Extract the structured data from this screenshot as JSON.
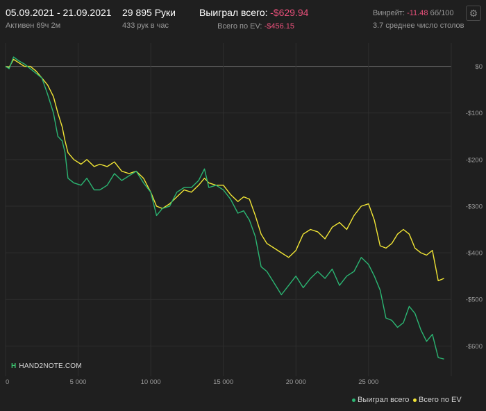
{
  "header": {
    "date_range": "05.09.2021 - 21.09.2021",
    "active_time": "Активен 69ч 2м",
    "hands": "29 895 Руки",
    "hands_per_hour": "433 рук в час",
    "won_label": "Выиграл всего:",
    "won_value": "-$629.94",
    "ev_label": "Всего по EV:",
    "ev_value": "-$456.15",
    "winrate_label": "Винрейт:",
    "winrate_value": "-11.48",
    "winrate_unit": "бб/100",
    "avg_tables": "3.7 среднее число столов"
  },
  "logo_text": "HAND2NOTE.COM",
  "icons": {
    "settings": "gear-icon",
    "logo": "hand2note-logo-icon"
  },
  "colors": {
    "background": "#1f1f1f",
    "won": "#2bb673",
    "ev": "#f2e635",
    "negative": "#e8507a",
    "grid": "#2e2e2e",
    "zero": "#6a6a6a"
  },
  "chart_data": {
    "type": "line",
    "xlabel": "",
    "ylabel": "",
    "xlim": [
      0,
      30700
    ],
    "ylim": [
      -665,
      50
    ],
    "x_ticks": [
      0,
      5000,
      10000,
      15000,
      20000,
      25000
    ],
    "x_tick_labels": [
      "0",
      "5 000",
      "10 000",
      "15 000",
      "20 000",
      "25 000"
    ],
    "y_ticks": [
      0,
      -100,
      -200,
      -300,
      -400,
      -500,
      -600
    ],
    "y_tick_labels": [
      "$0",
      "-$100",
      "-$200",
      "-$300",
      "-$400",
      "-$500",
      "-$600"
    ],
    "grid": true,
    "legend": "bottom-right",
    "series": [
      {
        "name": "Выиграл всего",
        "color": "#2bb673",
        "x": [
          0,
          250,
          550,
          900,
          1300,
          1700,
          2100,
          2500,
          2900,
          3300,
          3600,
          3900,
          4100,
          4300,
          4700,
          5200,
          5600,
          6100,
          6500,
          7000,
          7500,
          8000,
          8500,
          9000,
          9500,
          10000,
          10400,
          10800,
          11300,
          11800,
          12300,
          12800,
          13300,
          13700,
          14000,
          14500,
          15000,
          15500,
          16000,
          16400,
          16800,
          17200,
          17600,
          18000,
          18500,
          19000,
          19500,
          20000,
          20500,
          21000,
          21500,
          22000,
          22500,
          23000,
          23500,
          24000,
          24500,
          25000,
          25400,
          25800,
          26200,
          26600,
          27000,
          27400,
          27800,
          28200,
          28600,
          29000,
          29400,
          29800,
          30200
        ],
        "y": [
          0,
          -5,
          20,
          12,
          5,
          -5,
          -15,
          -25,
          -60,
          -100,
          -150,
          -160,
          -185,
          -240,
          -250,
          -255,
          -240,
          -265,
          -265,
          -255,
          -230,
          -245,
          -235,
          -225,
          -250,
          -270,
          -320,
          -305,
          -300,
          -270,
          -260,
          -260,
          -245,
          -220,
          -260,
          -255,
          -265,
          -285,
          -315,
          -310,
          -330,
          -365,
          -430,
          -440,
          -465,
          -490,
          -470,
          -450,
          -475,
          -455,
          -440,
          -455,
          -435,
          -470,
          -450,
          -440,
          -410,
          -425,
          -450,
          -480,
          -540,
          -545,
          -560,
          -550,
          -515,
          -530,
          -565,
          -590,
          -575,
          -625,
          -628
        ]
      },
      {
        "name": "Всего по EV",
        "color": "#f2e635",
        "x": [
          0,
          250,
          550,
          900,
          1300,
          1700,
          2100,
          2500,
          2900,
          3300,
          3600,
          3900,
          4100,
          4300,
          4700,
          5200,
          5600,
          6100,
          6500,
          7000,
          7500,
          8000,
          8500,
          9000,
          9500,
          10000,
          10400,
          10800,
          11300,
          11800,
          12300,
          12800,
          13300,
          13700,
          14000,
          14500,
          15000,
          15500,
          16000,
          16400,
          16800,
          17200,
          17600,
          18000,
          18500,
          19000,
          19500,
          20000,
          20500,
          21000,
          21500,
          22000,
          22500,
          23000,
          23500,
          24000,
          24500,
          25000,
          25400,
          25800,
          26200,
          26600,
          27000,
          27400,
          27800,
          28200,
          28600,
          29000,
          29400,
          29800,
          30200
        ],
        "y": [
          0,
          -2,
          15,
          8,
          0,
          0,
          -10,
          -25,
          -40,
          -65,
          -100,
          -130,
          -160,
          -185,
          -200,
          -210,
          -200,
          -215,
          -210,
          -215,
          -205,
          -225,
          -230,
          -225,
          -240,
          -270,
          -300,
          -305,
          -295,
          -280,
          -265,
          -270,
          -255,
          -240,
          -250,
          -255,
          -255,
          -275,
          -290,
          -280,
          -285,
          -320,
          -360,
          -380,
          -390,
          -400,
          -410,
          -395,
          -360,
          -350,
          -355,
          -370,
          -345,
          -335,
          -350,
          -320,
          -300,
          -295,
          -330,
          -385,
          -390,
          -380,
          -360,
          -350,
          -360,
          -390,
          -400,
          -405,
          -395,
          -460,
          -455
        ]
      }
    ]
  }
}
